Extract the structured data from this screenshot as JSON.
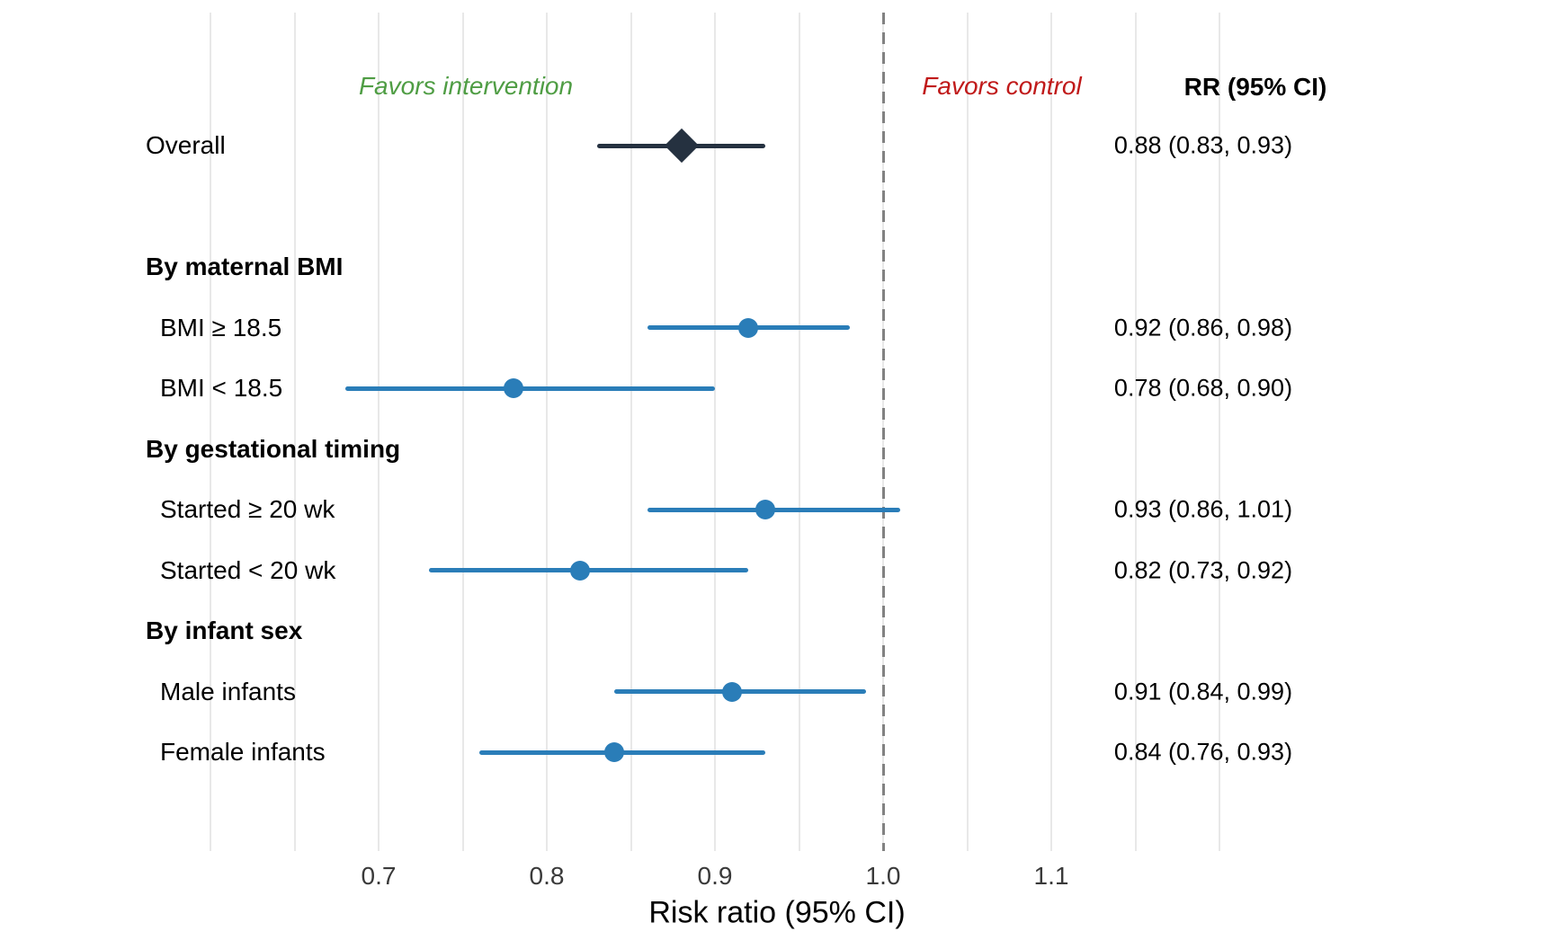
{
  "annotations": {
    "favors_intervention": "Favors intervention",
    "favors_control": "Favors control",
    "rr_header": "RR (95% CI)"
  },
  "chart_data": {
    "type": "forest",
    "xlabel": "Risk ratio (95% CI)",
    "x_ticks": [
      "0.7",
      "0.8",
      "0.9",
      "1.0",
      "1.1"
    ],
    "x_gridlines": [
      0.6,
      0.65,
      0.7,
      0.75,
      0.8,
      0.85,
      0.9,
      0.95,
      1.0,
      1.05,
      1.1,
      1.15,
      1.2
    ],
    "xlim": [
      0.6,
      1.2
    ],
    "ref_line": 1.0,
    "legend_left": "Favors intervention",
    "legend_right": "Favors control",
    "rows": [
      {
        "kind": "summary",
        "label": "Overall",
        "rr": 0.88,
        "lo": 0.83,
        "hi": 0.93,
        "text": "0.88 (0.83, 0.93)"
      },
      {
        "kind": "spacer",
        "label": ""
      },
      {
        "kind": "header",
        "label": "By maternal BMI"
      },
      {
        "kind": "point",
        "label": "BMI ≥ 18.5",
        "rr": 0.92,
        "lo": 0.86,
        "hi": 0.98,
        "text": "0.92 (0.86, 0.98)"
      },
      {
        "kind": "point",
        "label": "BMI < 18.5",
        "rr": 0.78,
        "lo": 0.68,
        "hi": 0.9,
        "text": "0.78 (0.68, 0.90)"
      },
      {
        "kind": "header",
        "label": "By gestational timing"
      },
      {
        "kind": "point",
        "label": "Started ≥ 20 wk",
        "rr": 0.93,
        "lo": 0.86,
        "hi": 1.01,
        "text": "0.93 (0.86, 1.01)"
      },
      {
        "kind": "point",
        "label": "Started < 20 wk",
        "rr": 0.82,
        "lo": 0.73,
        "hi": 0.92,
        "text": "0.82 (0.73, 0.92)"
      },
      {
        "kind": "header",
        "label": "By infant sex"
      },
      {
        "kind": "point",
        "label": "Male infants",
        "rr": 0.91,
        "lo": 0.84,
        "hi": 0.99,
        "text": "0.91 (0.84, 0.99)"
      },
      {
        "kind": "point",
        "label": "Female infants",
        "rr": 0.84,
        "lo": 0.76,
        "hi": 0.93,
        "text": "0.84 (0.76, 0.93)"
      }
    ],
    "colors": {
      "point": "#2a7db8",
      "ci_line": "#2a7db8",
      "summary": "#253140",
      "grid": "#e8e8e8",
      "ref_line": "#828282",
      "favors_intervention": "#4f9d44",
      "favors_control": "#c01a1a"
    }
  }
}
